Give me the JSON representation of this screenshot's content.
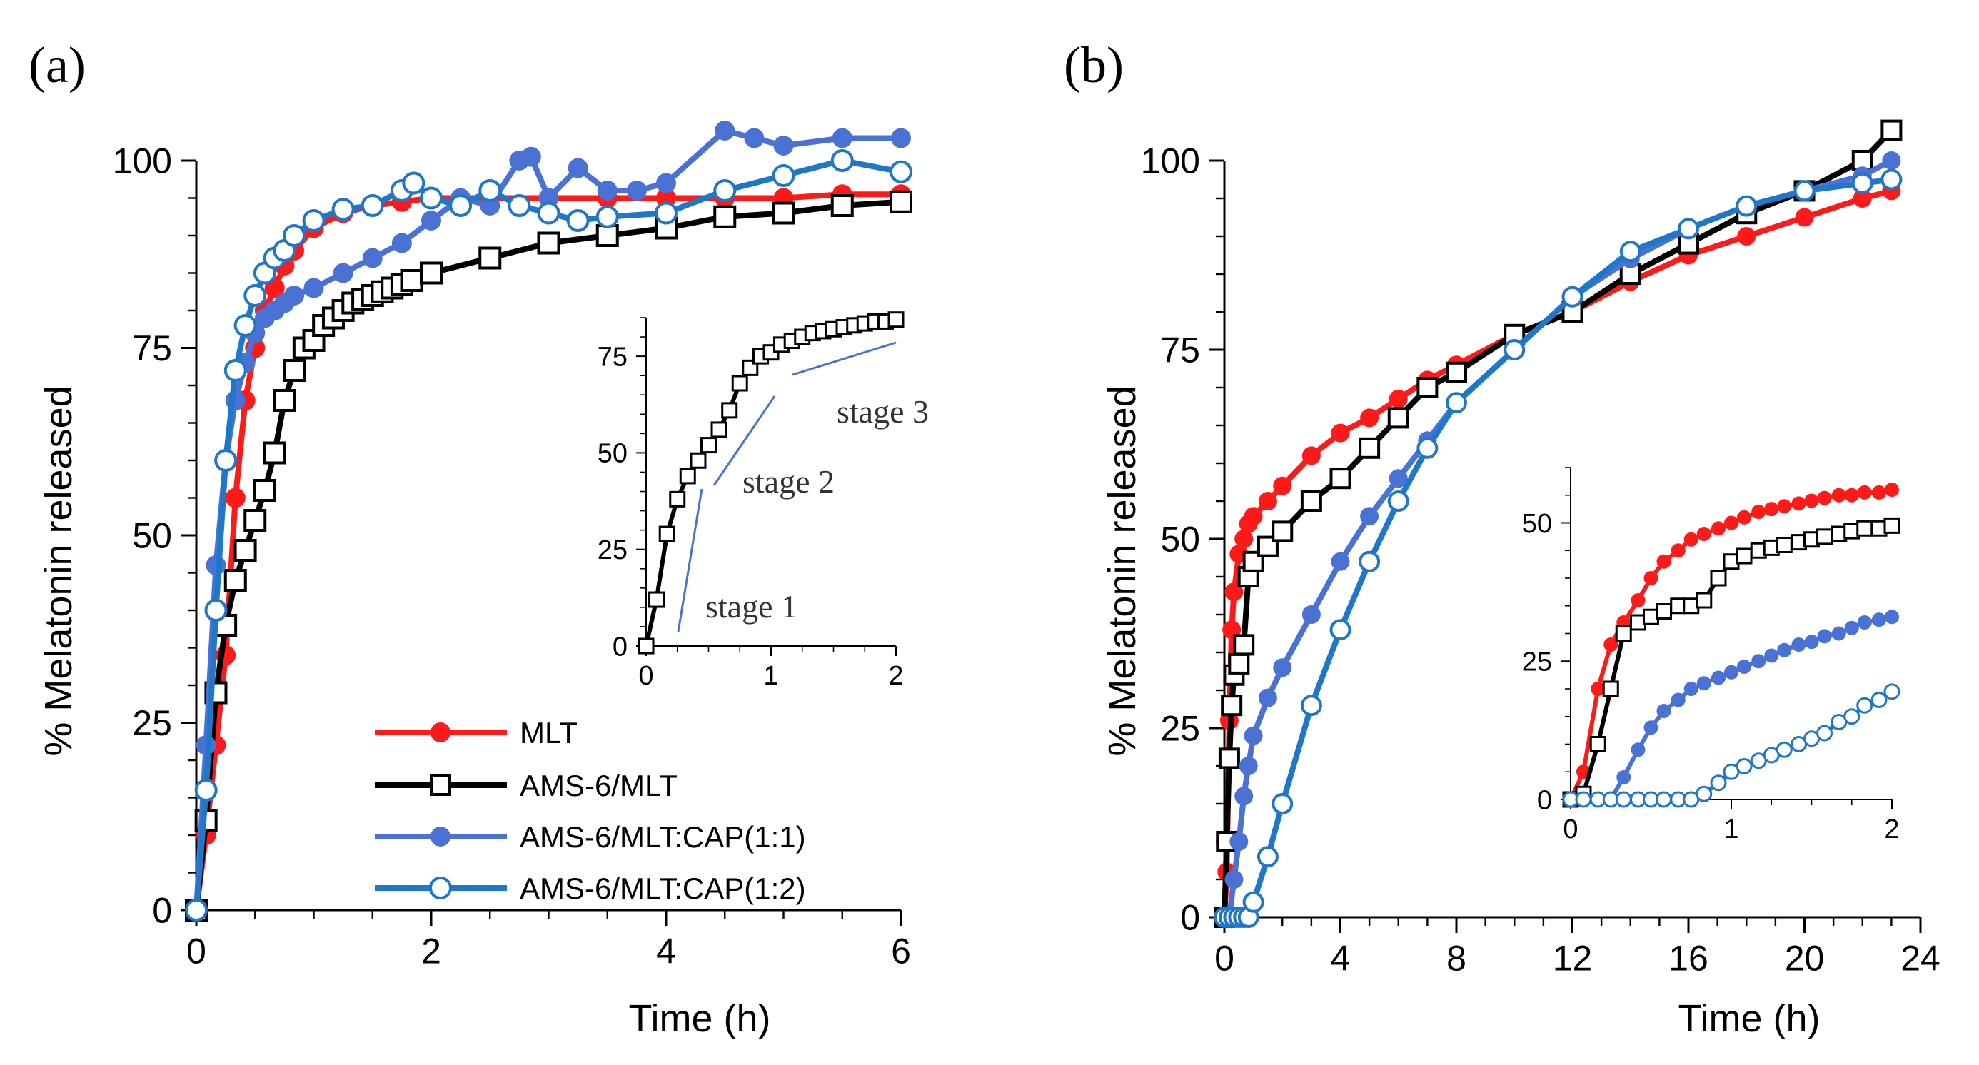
{
  "chart_data": [
    {
      "panel_label": "(a)",
      "type": "line",
      "xlabel": "Time (h)",
      "ylabel": "% Melatonin released",
      "xlim": [
        0,
        6
      ],
      "ylim": [
        0,
        100
      ],
      "xticks": [
        0,
        2,
        4,
        6
      ],
      "yticks": [
        0,
        25,
        50,
        75,
        100
      ],
      "legend_position": "bottom-center",
      "series": [
        {
          "name": "MLT",
          "color": "#ff1a1a",
          "marker": "filled-circle",
          "x": [
            0,
            0.083,
            0.167,
            0.25,
            0.333,
            0.417,
            0.5,
            0.583,
            0.667,
            0.75,
            0.833,
            1,
            1.25,
            1.5,
            1.75,
            2,
            2.5,
            3,
            3.5,
            4,
            4.5,
            5,
            5.5,
            6
          ],
          "y": [
            0,
            10,
            22,
            34,
            55,
            68,
            75,
            80,
            83,
            86,
            88,
            91,
            93,
            94,
            94.5,
            95,
            95,
            95,
            95,
            95,
            95,
            95,
            95.5,
            95.5
          ]
        },
        {
          "name": "AMS-6/MLT",
          "color": "#000000",
          "marker": "open-square",
          "x": [
            0,
            0.083,
            0.167,
            0.25,
            0.333,
            0.417,
            0.5,
            0.583,
            0.667,
            0.75,
            0.833,
            0.917,
            1,
            1.083,
            1.167,
            1.25,
            1.333,
            1.417,
            1.5,
            1.583,
            1.667,
            1.75,
            1.833,
            2,
            2.5,
            3,
            3.5,
            4,
            4.5,
            5,
            5.5,
            6
          ],
          "y": [
            0,
            12,
            29,
            38,
            44,
            48,
            52,
            56,
            61,
            68,
            72,
            75,
            76,
            78,
            79,
            80,
            81,
            81.5,
            82,
            82.5,
            83,
            83.5,
            84,
            85,
            87,
            89,
            90,
            91,
            92.5,
            93,
            94,
            94.5
          ]
        },
        {
          "name": "AMS-6/MLT:CAP(1:1)",
          "color": "#4a72d4",
          "marker": "filled-circle",
          "x": [
            0,
            0.083,
            0.167,
            0.25,
            0.333,
            0.417,
            0.5,
            0.583,
            0.667,
            0.75,
            0.833,
            1,
            1.25,
            1.5,
            1.75,
            2,
            2.25,
            2.5,
            2.75,
            2.85,
            3,
            3.25,
            3.5,
            3.75,
            4,
            4.5,
            4.75,
            5,
            5.5,
            6
          ],
          "y": [
            0,
            22,
            46,
            60,
            68,
            73,
            77,
            79,
            80,
            81,
            82,
            83,
            85,
            87,
            89,
            92,
            95,
            94,
            100,
            100.5,
            95,
            99,
            96,
            96,
            97,
            104,
            103,
            102,
            103,
            103
          ]
        },
        {
          "name": "AMS-6/MLT:CAP(1:2)",
          "color": "#1f77c8",
          "marker": "open-circle",
          "x": [
            0,
            0.083,
            0.167,
            0.25,
            0.333,
            0.417,
            0.5,
            0.583,
            0.667,
            0.75,
            0.833,
            1,
            1.25,
            1.5,
            1.75,
            1.85,
            2,
            2.25,
            2.5,
            2.75,
            3,
            3.25,
            3.5,
            4,
            4.5,
            5,
            5.5,
            6
          ],
          "y": [
            0,
            16,
            40,
            60,
            72,
            78,
            82,
            85,
            87,
            88,
            90,
            92,
            93.5,
            94,
            96,
            97,
            95,
            94,
            96,
            94,
            93,
            92,
            92.5,
            93,
            96,
            98,
            100,
            98.5
          ]
        }
      ],
      "inset": {
        "xlim": [
          0,
          2
        ],
        "ylim": [
          0,
          85
        ],
        "xticks": [
          0,
          1,
          2
        ],
        "yticks": [
          0,
          25,
          50,
          75
        ],
        "series": [
          {
            "name": "AMS-6/MLT",
            "color": "#000000",
            "marker": "open-square",
            "x": [
              0,
              0.083,
              0.167,
              0.25,
              0.333,
              0.417,
              0.5,
              0.583,
              0.667,
              0.75,
              0.833,
              0.917,
              1,
              1.083,
              1.167,
              1.25,
              1.333,
              1.417,
              1.5,
              1.583,
              1.667,
              1.75,
              1.833,
              1.917,
              2
            ],
            "y": [
              0,
              12,
              29,
              38,
              44,
              48,
              52,
              56,
              61,
              68,
              72,
              75,
              76,
              78,
              79,
              80,
              81,
              81.5,
              82,
              82.5,
              83,
              83.5,
              84,
              84,
              84.5
            ]
          }
        ],
        "annotations": [
          "stage 1",
          "stage 2",
          "stage 3"
        ]
      }
    },
    {
      "panel_label": "(b)",
      "type": "line",
      "xlabel": "Time (h)",
      "ylabel": "% Melatonin released",
      "xlim": [
        0,
        24
      ],
      "ylim": [
        0,
        100
      ],
      "xticks": [
        0,
        4,
        8,
        12,
        16,
        20,
        24
      ],
      "yticks": [
        0,
        25,
        50,
        75,
        100
      ],
      "series": [
        {
          "name": "MLT",
          "color": "#ff1a1a",
          "marker": "filled-circle",
          "x": [
            0,
            0.08,
            0.17,
            0.25,
            0.33,
            0.5,
            0.67,
            0.83,
            1,
            1.5,
            2,
            3,
            4,
            5,
            6,
            7,
            8,
            10,
            12,
            14,
            16,
            18,
            20,
            22,
            23
          ],
          "y": [
            0,
            6,
            26,
            38,
            43,
            48,
            50,
            52,
            53,
            55,
            57,
            61,
            64,
            66,
            68.5,
            71,
            73,
            77,
            80,
            84,
            87.5,
            90,
            92.5,
            95,
            96
          ]
        },
        {
          "name": "AMS-6/MLT",
          "color": "#000000",
          "marker": "open-square",
          "x": [
            0,
            0.08,
            0.17,
            0.25,
            0.33,
            0.5,
            0.67,
            0.83,
            1,
            1.5,
            2,
            3,
            4,
            5,
            6,
            7,
            8,
            10,
            12,
            14,
            16,
            18,
            20,
            22,
            23
          ],
          "y": [
            0,
            10,
            21,
            28,
            32,
            33.5,
            36,
            45,
            47,
            49,
            51,
            55,
            58,
            62,
            66,
            70,
            72,
            77,
            80,
            85,
            89,
            93,
            96,
            100,
            104
          ]
        },
        {
          "name": "AMS-6/MLT:CAP(1:1)",
          "color": "#4a72d4",
          "marker": "filled-circle",
          "x": [
            0,
            0.17,
            0.33,
            0.5,
            0.67,
            0.83,
            1,
            1.5,
            2,
            3,
            4,
            5,
            6,
            7,
            8,
            10,
            12,
            14,
            16,
            18,
            20,
            22,
            23
          ],
          "y": [
            0,
            0,
            5,
            10,
            16,
            20,
            24,
            29,
            33,
            40,
            47,
            53,
            58,
            63,
            68,
            75,
            82,
            87,
            91,
            94,
            96,
            98,
            100
          ]
        },
        {
          "name": "AMS-6/MLT:CAP(1:2)",
          "color": "#1f77c8",
          "marker": "open-circle",
          "x": [
            0,
            0.17,
            0.33,
            0.5,
            0.67,
            0.83,
            1,
            1.5,
            2,
            3,
            4,
            5,
            6,
            7,
            8,
            10,
            12,
            14,
            16,
            18,
            20,
            22,
            23
          ],
          "y": [
            0,
            0,
            0,
            0,
            0,
            0,
            2,
            8,
            15,
            28,
            38,
            47,
            55,
            62,
            68,
            75,
            82,
            88,
            91,
            94,
            96,
            97,
            97.5
          ]
        }
      ],
      "inset": {
        "xlim": [
          0,
          2
        ],
        "ylim": [
          0,
          60
        ],
        "xticks": [
          0,
          1,
          2
        ],
        "yticks": [
          0,
          25,
          50
        ],
        "series": [
          {
            "name": "MLT",
            "color": "#ff1a1a",
            "marker": "filled-circle",
            "x": [
              0,
              0.08,
              0.17,
              0.25,
              0.33,
              0.42,
              0.5,
              0.58,
              0.67,
              0.75,
              0.83,
              0.92,
              1,
              1.08,
              1.17,
              1.25,
              1.33,
              1.42,
              1.5,
              1.58,
              1.67,
              1.75,
              1.83,
              1.92,
              2
            ],
            "y": [
              0,
              5,
              20,
              28,
              32,
              36,
              40,
              43,
              45,
              47,
              48,
              49,
              50,
              51,
              52,
              52.5,
              53,
              53.5,
              54,
              54.5,
              55,
              55,
              55.5,
              55.5,
              56
            ]
          },
          {
            "name": "AMS-6/MLT",
            "color": "#000000",
            "marker": "open-square",
            "x": [
              0,
              0.08,
              0.17,
              0.25,
              0.33,
              0.42,
              0.5,
              0.58,
              0.67,
              0.75,
              0.83,
              0.92,
              1,
              1.08,
              1.17,
              1.25,
              1.33,
              1.42,
              1.5,
              1.58,
              1.67,
              1.75,
              1.83,
              1.92,
              2
            ],
            "y": [
              0,
              1,
              10,
              20,
              30,
              32,
              33,
              34,
              35,
              35,
              36,
              40,
              43,
              44,
              45,
              45.5,
              46,
              46.5,
              47,
              47.5,
              48,
              48.5,
              49,
              49,
              49.5
            ]
          },
          {
            "name": "AMS-6/MLT:CAP(1:1)",
            "color": "#4a72d4",
            "marker": "filled-circle",
            "x": [
              0,
              0.08,
              0.17,
              0.25,
              0.33,
              0.42,
              0.5,
              0.58,
              0.67,
              0.75,
              0.83,
              0.92,
              1,
              1.08,
              1.17,
              1.25,
              1.33,
              1.42,
              1.5,
              1.58,
              1.67,
              1.75,
              1.83,
              1.92,
              2
            ],
            "y": [
              0,
              0,
              0,
              0,
              4,
              9,
              13,
              16,
              18,
              20,
              21,
              22,
              23,
              24,
              25,
              26,
              27,
              28,
              28.5,
              29.5,
              30,
              31,
              32,
              32.5,
              33
            ]
          },
          {
            "name": "AMS-6/MLT:CAP(1:2)",
            "color": "#1f77c8",
            "marker": "open-circle",
            "x": [
              0,
              0.08,
              0.17,
              0.25,
              0.33,
              0.42,
              0.5,
              0.58,
              0.67,
              0.75,
              0.83,
              0.92,
              1,
              1.08,
              1.17,
              1.25,
              1.33,
              1.42,
              1.5,
              1.58,
              1.67,
              1.75,
              1.83,
              1.92,
              2
            ],
            "y": [
              0,
              0,
              0,
              0,
              0,
              0,
              0,
              0,
              0,
              0,
              1,
              3,
              5,
              6,
              7,
              8,
              9,
              10,
              11,
              12,
              14,
              15,
              17,
              18,
              19.5
            ]
          }
        ]
      }
    }
  ]
}
